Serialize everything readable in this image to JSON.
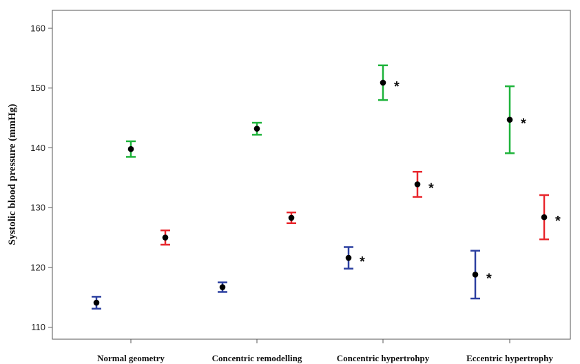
{
  "chart_data": {
    "type": "scatter",
    "subtype": "error-bar interval plot",
    "title": "",
    "xlabel": "",
    "ylabel": "Systolic blood pressure (mmHg)",
    "ylim": [
      108,
      163
    ],
    "yticks": [
      "110",
      "120",
      "130",
      "140",
      "150",
      "160"
    ],
    "grid": false,
    "categories": [
      "Normal geometry",
      "Concentric remodelling",
      "Concentric hypertrohpy",
      "Eccentric hypertrophy"
    ],
    "series": [
      {
        "color": "#2b3fa0",
        "points": [
          {
            "category": 0,
            "mean": 114.1,
            "lower": 113.1,
            "upper": 115.1,
            "significant": false
          },
          {
            "category": 1,
            "mean": 116.7,
            "lower": 115.9,
            "upper": 117.5,
            "significant": false
          },
          {
            "category": 2,
            "mean": 121.6,
            "lower": 119.8,
            "upper": 123.4,
            "significant": true
          },
          {
            "category": 3,
            "mean": 118.8,
            "lower": 114.8,
            "upper": 122.8,
            "significant": true
          }
        ]
      },
      {
        "color": "#1db33a",
        "points": [
          {
            "category": 0,
            "mean": 139.8,
            "lower": 138.5,
            "upper": 141.1,
            "significant": false
          },
          {
            "category": 1,
            "mean": 143.2,
            "lower": 142.2,
            "upper": 144.2,
            "significant": false
          },
          {
            "category": 2,
            "mean": 150.9,
            "lower": 148.0,
            "upper": 153.8,
            "significant": true
          },
          {
            "category": 3,
            "mean": 144.7,
            "lower": 139.1,
            "upper": 150.3,
            "significant": true
          }
        ]
      },
      {
        "color": "#e8262c",
        "points": [
          {
            "category": 0,
            "mean": 125.0,
            "lower": 123.8,
            "upper": 126.2,
            "significant": false
          },
          {
            "category": 1,
            "mean": 128.3,
            "lower": 127.4,
            "upper": 129.2,
            "significant": false
          },
          {
            "category": 2,
            "mean": 133.9,
            "lower": 131.8,
            "upper": 136.0,
            "significant": true
          },
          {
            "category": 3,
            "mean": 128.4,
            "lower": 124.7,
            "upper": 132.1,
            "significant": true
          }
        ]
      }
    ],
    "significance_marker": "*"
  }
}
